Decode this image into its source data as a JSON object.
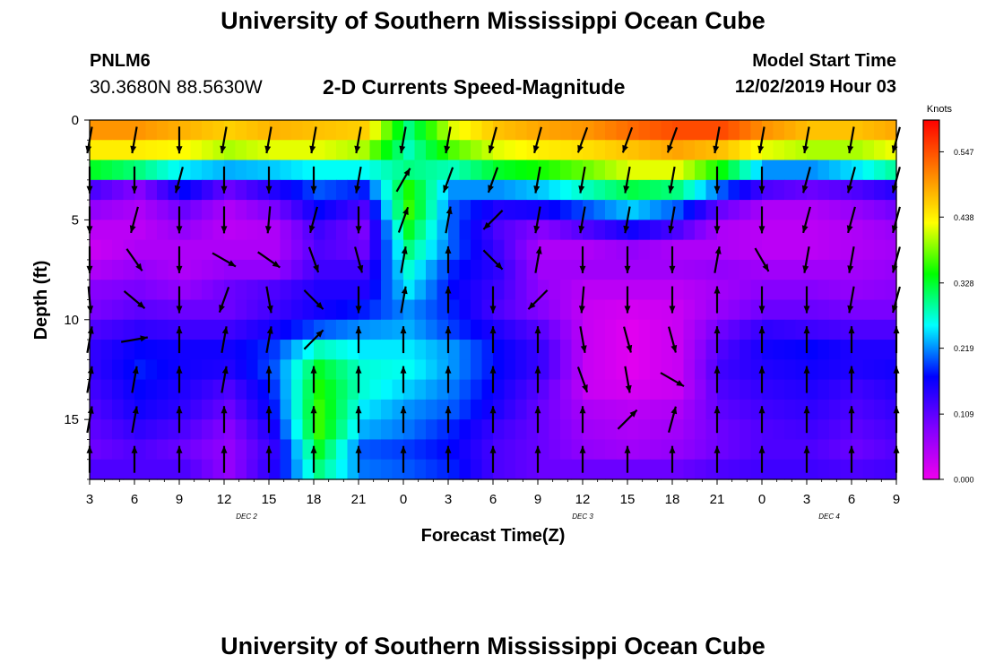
{
  "header": {
    "title": "University of Southern Mississippi Ocean Cube",
    "station": "PNLM6",
    "coords": "30.3680N 88.5630W",
    "subtitle": "2-D Currents Speed-Magnitude",
    "model_start_label": "Model Start Time",
    "model_start_value": "12/02/2019 Hour 03"
  },
  "footer": {
    "title": "University of Southern Mississippi Ocean Cube"
  },
  "colors": {
    "arrow": "#000000",
    "frame": "#000000"
  },
  "chart_data": {
    "type": "heatmap",
    "xlabel": "Forecast Time(Z)",
    "ylabel": "Depth (ft)",
    "x_unit": "hours since model start (12/02/2019 03Z)",
    "x_tick_hours": [
      0,
      3,
      6,
      9,
      12,
      15,
      18,
      21,
      24,
      27,
      30,
      33,
      36,
      39,
      42,
      45,
      48,
      51,
      54
    ],
    "x_tick_labels": [
      "3",
      "6",
      "9",
      "12",
      "15",
      "18",
      "21",
      "0",
      "3",
      "6",
      "9",
      "12",
      "15",
      "18",
      "21",
      "0",
      "3",
      "6",
      "9"
    ],
    "x_range": [
      0,
      54
    ],
    "day_labels": [
      {
        "text": "DEC 2",
        "at_hour": 10.5
      },
      {
        "text": "DEC 3",
        "at_hour": 33
      },
      {
        "text": "DEC 4",
        "at_hour": 49.5
      }
    ],
    "y_ticks": [
      0,
      5,
      10,
      15
    ],
    "y_range": [
      0,
      18
    ],
    "y_inverted": true,
    "colorbar": {
      "unit_label": "Knots",
      "ticks": [
        0.0,
        0.109,
        0.219,
        0.328,
        0.438,
        0.547
      ],
      "tick_labels": [
        "0.000",
        "0.109",
        "0.219",
        "0.328",
        "0.438",
        "0.547"
      ],
      "range": [
        0,
        0.6
      ],
      "colormap": [
        "#ee00ee",
        "#8000ff",
        "#0000ff",
        "#00ffff",
        "#00ff00",
        "#ffff00",
        "#ff8000",
        "#ff0000"
      ]
    },
    "depths_ft": [
      0.5,
      1.5,
      2.5,
      3.5,
      4.5,
      5.5,
      6.5,
      7.5,
      8.5,
      9.5,
      10.5,
      11.5,
      12.5,
      13.5,
      14.5,
      15.5,
      16.5,
      17.5
    ],
    "times_h": [
      0,
      3,
      6,
      9,
      12,
      15,
      18,
      21,
      24,
      27,
      30,
      33,
      36,
      39,
      42,
      45,
      48,
      51,
      54
    ],
    "speed_knots": [
      [
        0.5,
        0.5,
        0.48,
        0.46,
        0.48,
        0.47,
        0.46,
        0.3,
        0.42,
        0.47,
        0.49,
        0.5,
        0.53,
        0.55,
        0.55,
        0.5,
        0.47,
        0.47,
        0.49
      ],
      [
        0.44,
        0.44,
        0.43,
        0.4,
        0.42,
        0.42,
        0.4,
        0.28,
        0.37,
        0.42,
        0.44,
        0.45,
        0.47,
        0.49,
        0.47,
        0.42,
        0.4,
        0.4,
        0.43
      ],
      [
        0.33,
        0.3,
        0.25,
        0.23,
        0.24,
        0.26,
        0.26,
        0.3,
        0.28,
        0.33,
        0.35,
        0.38,
        0.42,
        0.42,
        0.34,
        0.22,
        0.22,
        0.25,
        0.3
      ],
      [
        0.12,
        0.08,
        0.17,
        0.1,
        0.15,
        0.2,
        0.18,
        0.35,
        0.22,
        0.22,
        0.24,
        0.28,
        0.32,
        0.3,
        0.2,
        0.12,
        0.1,
        0.12,
        0.15
      ],
      [
        0.07,
        0.05,
        0.1,
        0.05,
        0.09,
        0.17,
        0.12,
        0.36,
        0.2,
        0.15,
        0.16,
        0.2,
        0.24,
        0.2,
        0.1,
        0.05,
        0.05,
        0.07,
        0.1
      ],
      [
        0.04,
        0.04,
        0.07,
        0.04,
        0.05,
        0.13,
        0.09,
        0.33,
        0.2,
        0.12,
        0.08,
        0.12,
        0.16,
        0.12,
        0.05,
        0.04,
        0.04,
        0.05,
        0.07
      ],
      [
        0.03,
        0.05,
        0.05,
        0.05,
        0.05,
        0.12,
        0.1,
        0.3,
        0.2,
        0.13,
        0.05,
        0.05,
        0.07,
        0.05,
        0.05,
        0.04,
        0.04,
        0.05,
        0.06
      ],
      [
        0.05,
        0.07,
        0.05,
        0.07,
        0.07,
        0.13,
        0.13,
        0.27,
        0.18,
        0.14,
        0.06,
        0.06,
        0.06,
        0.06,
        0.07,
        0.06,
        0.06,
        0.06,
        0.07
      ],
      [
        0.08,
        0.09,
        0.07,
        0.1,
        0.12,
        0.15,
        0.15,
        0.25,
        0.17,
        0.13,
        0.07,
        0.04,
        0.04,
        0.04,
        0.06,
        0.08,
        0.08,
        0.07,
        0.08
      ],
      [
        0.09,
        0.11,
        0.1,
        0.1,
        0.13,
        0.16,
        0.18,
        0.22,
        0.18,
        0.12,
        0.08,
        0.03,
        0.02,
        0.03,
        0.07,
        0.1,
        0.1,
        0.09,
        0.09
      ],
      [
        0.12,
        0.14,
        0.13,
        0.13,
        0.16,
        0.2,
        0.22,
        0.23,
        0.19,
        0.15,
        0.11,
        0.03,
        0.01,
        0.03,
        0.1,
        0.14,
        0.13,
        0.12,
        0.12
      ],
      [
        0.14,
        0.17,
        0.16,
        0.16,
        0.19,
        0.28,
        0.25,
        0.25,
        0.22,
        0.17,
        0.13,
        0.03,
        0.01,
        0.03,
        0.12,
        0.16,
        0.17,
        0.15,
        0.15
      ],
      [
        0.14,
        0.18,
        0.16,
        0.15,
        0.2,
        0.33,
        0.27,
        0.26,
        0.22,
        0.17,
        0.13,
        0.03,
        0.01,
        0.03,
        0.13,
        0.15,
        0.16,
        0.15,
        0.16
      ],
      [
        0.13,
        0.17,
        0.15,
        0.12,
        0.19,
        0.35,
        0.27,
        0.24,
        0.21,
        0.16,
        0.11,
        0.03,
        0.02,
        0.03,
        0.12,
        0.14,
        0.15,
        0.13,
        0.15
      ],
      [
        0.12,
        0.16,
        0.14,
        0.1,
        0.18,
        0.36,
        0.25,
        0.22,
        0.2,
        0.15,
        0.1,
        0.05,
        0.04,
        0.05,
        0.11,
        0.13,
        0.14,
        0.12,
        0.14
      ],
      [
        0.11,
        0.14,
        0.12,
        0.08,
        0.16,
        0.36,
        0.23,
        0.21,
        0.18,
        0.13,
        0.1,
        0.06,
        0.05,
        0.06,
        0.1,
        0.12,
        0.13,
        0.11,
        0.13
      ],
      [
        0.1,
        0.12,
        0.1,
        0.07,
        0.14,
        0.33,
        0.2,
        0.19,
        0.17,
        0.12,
        0.1,
        0.07,
        0.06,
        0.07,
        0.1,
        0.12,
        0.12,
        0.1,
        0.12
      ],
      [
        0.12,
        0.12,
        0.12,
        0.07,
        0.15,
        0.3,
        0.21,
        0.2,
        0.18,
        0.12,
        0.1,
        0.1,
        0.1,
        0.1,
        0.12,
        0.13,
        0.13,
        0.12,
        0.13
      ]
    ],
    "arrow_depths_ft": [
      1,
      3,
      5,
      7,
      9,
      11,
      13,
      15,
      17
    ],
    "arrow_direction_deg": [
      [
        190,
        190,
        180,
        190,
        190,
        190,
        190,
        190,
        190,
        195,
        195,
        200,
        200,
        200,
        190,
        190,
        190,
        190,
        195
      ],
      [
        180,
        180,
        195,
        180,
        180,
        180,
        190,
        30,
        200,
        200,
        190,
        190,
        190,
        190,
        180,
        180,
        195,
        195,
        195
      ],
      [
        180,
        195,
        180,
        180,
        185,
        195,
        180,
        20,
        10,
        225,
        190,
        190,
        190,
        190,
        180,
        180,
        195,
        195,
        195
      ],
      [
        180,
        145,
        180,
        120,
        125,
        160,
        165,
        10,
        0,
        135,
        10,
        180,
        180,
        180,
        10,
        150,
        190,
        190,
        195
      ],
      [
        175,
        130,
        180,
        200,
        170,
        135,
        180,
        10,
        0,
        180,
        225,
        185,
        180,
        180,
        0,
        180,
        180,
        190,
        195
      ],
      [
        10,
        80,
        0,
        10,
        10,
        45,
        0,
        0,
        0,
        0,
        0,
        170,
        165,
        165,
        0,
        0,
        0,
        0,
        0
      ],
      [
        10,
        10,
        0,
        10,
        0,
        0,
        0,
        0,
        0,
        0,
        0,
        160,
        170,
        120,
        0,
        0,
        0,
        0,
        0
      ],
      [
        10,
        10,
        0,
        0,
        0,
        0,
        0,
        0,
        0,
        0,
        0,
        0,
        45,
        15,
        0,
        0,
        0,
        0,
        0
      ],
      [
        0,
        0,
        0,
        0,
        0,
        0,
        0,
        0,
        0,
        0,
        0,
        0,
        0,
        0,
        0,
        0,
        0,
        0,
        0
      ]
    ]
  }
}
